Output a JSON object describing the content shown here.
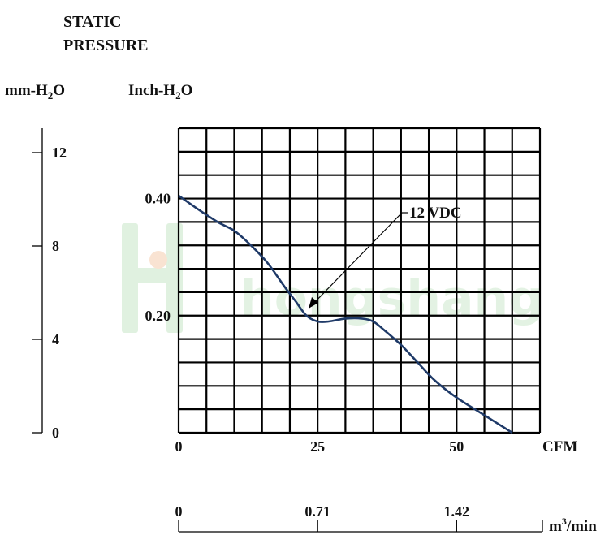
{
  "labels": {
    "static_line1": "STATIC",
    "static_line2": "PRESSURE",
    "mm_prefix": "mm-H",
    "inch_prefix": "Inch-H",
    "sub2": "2",
    "o_suffix": "O",
    "cfm": "CFM",
    "m3_m": "m",
    "m3_sup": "3",
    "m3_rest": "/min",
    "curve_label": "12 VDC"
  },
  "colors": {
    "curve": "#1f3a68",
    "grid": "#000000",
    "watermark": "#a8d8a8"
  },
  "chart_data": {
    "type": "line",
    "title": "",
    "ylabel": "STATIC PRESSURE",
    "x_cfm": {
      "label": "CFM",
      "range": [
        0,
        65
      ],
      "ticks": [
        0,
        25,
        50
      ]
    },
    "x_m3min": {
      "label": "m3/min",
      "ticks": [
        "0",
        "0.71",
        "1.42"
      ]
    },
    "y_inch": {
      "label": "Inch-H2O",
      "range": [
        0,
        0.52
      ],
      "ticks": [
        "0.20",
        "0.40"
      ]
    },
    "y_mm": {
      "label": "mm-H2O",
      "range": [
        0,
        13
      ],
      "ticks": [
        "0",
        "4",
        "8",
        "12"
      ]
    },
    "grid": true,
    "series": [
      {
        "name": "12 VDC",
        "x": [
          0,
          3,
          7,
          10,
          13,
          16,
          19,
          21,
          23,
          25,
          27,
          30,
          33,
          35,
          37,
          40,
          43,
          46,
          50,
          55,
          60
        ],
        "y": [
          0.405,
          0.385,
          0.36,
          0.345,
          0.32,
          0.29,
          0.25,
          0.225,
          0.2,
          0.19,
          0.19,
          0.195,
          0.195,
          0.19,
          0.175,
          0.15,
          0.12,
          0.09,
          0.06,
          0.03,
          0.0
        ]
      }
    ]
  }
}
